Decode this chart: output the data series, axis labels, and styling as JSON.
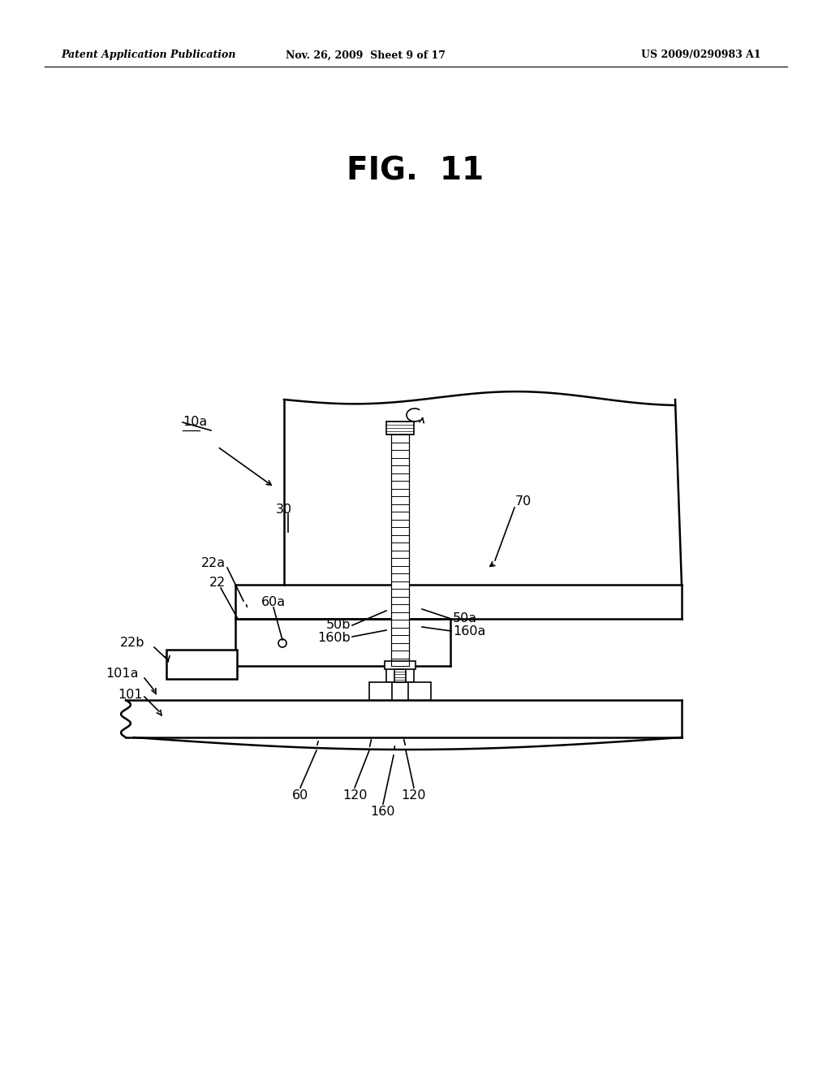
{
  "bg_color": "#ffffff",
  "header_left": "Patent Application Publication",
  "header_mid": "Nov. 26, 2009  Sheet 9 of 17",
  "header_right": "US 2009/0290983 A1",
  "fig_title": "FIG.  11",
  "line_color": "#000000"
}
